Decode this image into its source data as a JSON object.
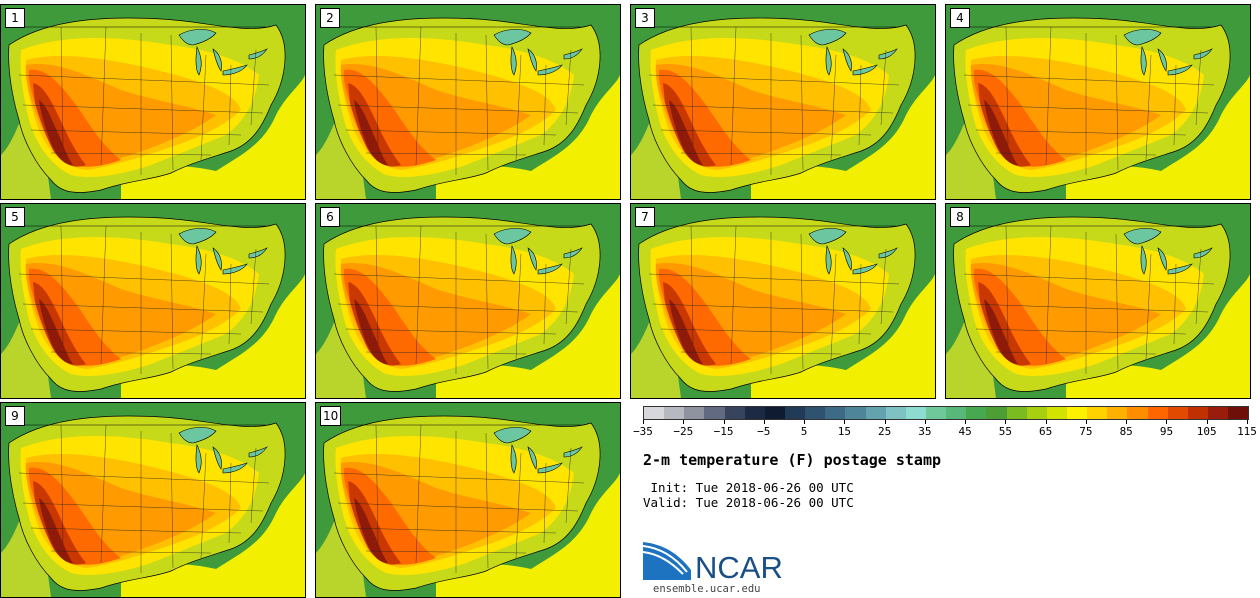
{
  "panels": [
    {
      "label": "1"
    },
    {
      "label": "2"
    },
    {
      "label": "3"
    },
    {
      "label": "4"
    },
    {
      "label": "5"
    },
    {
      "label": "6"
    },
    {
      "label": "7"
    },
    {
      "label": "8"
    },
    {
      "label": "9"
    },
    {
      "label": "10"
    }
  ],
  "colorbar": {
    "colors": [
      "#d8d8dc",
      "#b7b9c0",
      "#8f93a0",
      "#616a80",
      "#38445e",
      "#1c2a44",
      "#0e1b30",
      "#213a56",
      "#2e5270",
      "#3d6a85",
      "#4f8599",
      "#64a2ae",
      "#7ec2c4",
      "#8edbd0",
      "#6fc89a",
      "#57b87a",
      "#47a84f",
      "#4c9e35",
      "#7bbb22",
      "#a8cf10",
      "#d3e300",
      "#fff200",
      "#ffd200",
      "#ffb000",
      "#ff8d00",
      "#ff6600",
      "#e24a00",
      "#c03000",
      "#9a1c0c",
      "#6e0f0a"
    ],
    "tick_labels": [
      "−35",
      "−25",
      "−15",
      "−5",
      "5",
      "15",
      "25",
      "35",
      "45",
      "55",
      "65",
      "75",
      "85",
      "95",
      "105",
      "115"
    ]
  },
  "title": "2-m temperature (F) postage stamp",
  "init_text": " Init: Tue 2018-06-26 00 UTC",
  "valid_text": "Valid: Tue 2018-06-26 00 UTC",
  "logo": {
    "text": "NCAR",
    "url": "ensemble.ucar.edu",
    "brand_color": "#1a5a9a"
  }
}
